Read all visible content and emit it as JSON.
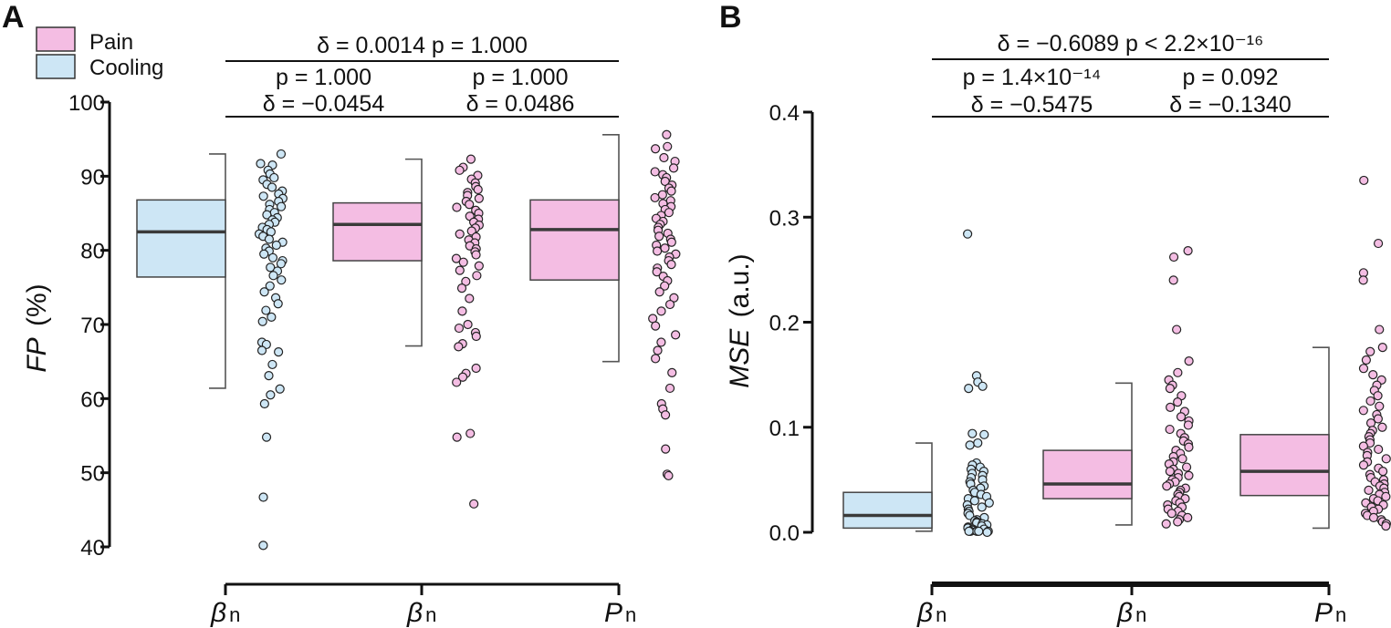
{
  "legend": [
    {
      "label": "Pain",
      "color": "#f4bde3"
    },
    {
      "label": "Cooling",
      "color": "#cde6f5"
    }
  ],
  "chart_data": [
    {
      "panel": "A",
      "type": "box",
      "ylabel_italic": "FP",
      "ylabel_rest": "(%)",
      "ylim": [
        40,
        100
      ],
      "yticks": [
        40,
        50,
        60,
        70,
        80,
        90,
        100
      ],
      "groups": [
        {
          "label": "β",
          "sub": "n",
          "condition": "Cooling",
          "min": 61.4,
          "q1": 76.4,
          "median": 82.5,
          "q3": 86.8,
          "max": 93.0,
          "points": [
            93,
            91.7,
            91.5,
            90.8,
            90.3,
            89.8,
            89.5,
            88.9,
            88.5,
            88,
            87.6,
            87.3,
            87,
            86.6,
            86.2,
            85.9,
            85.5,
            85.1,
            84.8,
            84.4,
            84.1,
            83.8,
            83.5,
            83.1,
            82.8,
            82.5,
            82.2,
            81.9,
            81.5,
            81.1,
            80.7,
            80.3,
            79.9,
            79.5,
            79,
            78.6,
            78.2,
            77.7,
            77.2,
            76.6,
            76,
            75.2,
            74.4,
            73.6,
            72.8,
            71.9,
            71,
            70.4,
            67.6,
            67.3,
            66.5,
            66.3,
            64.6,
            63.1,
            61.3,
            60.5,
            59.3,
            54.8,
            46.7,
            40.2
          ]
        },
        {
          "label": "β",
          "sub": "n",
          "condition": "Pain",
          "min": 67.1,
          "q1": 78.6,
          "median": 83.5,
          "q3": 86.4,
          "max": 92.3,
          "points": [
            92.3,
            91.2,
            90.8,
            90.1,
            89.6,
            89.1,
            88.6,
            88.2,
            87.8,
            87.4,
            87,
            86.6,
            86.2,
            85.8,
            85.4,
            85,
            84.6,
            84.2,
            83.8,
            83.4,
            83,
            82.6,
            82.2,
            81.8,
            81.4,
            81,
            80.6,
            80.2,
            79.8,
            79.4,
            78.9,
            78.4,
            77.9,
            77.3,
            76.6,
            75.8,
            74.9,
            73.5,
            71.8,
            70,
            69.5,
            68.9,
            68.4,
            67.4,
            67,
            64.1,
            63.4,
            62.9,
            62.2,
            55.3,
            54.8,
            45.8
          ]
        },
        {
          "label": "P",
          "sub": "n",
          "condition": "Pain",
          "min": 65.0,
          "q1": 76.0,
          "median": 82.8,
          "q3": 86.8,
          "max": 95.6,
          "points": [
            95.6,
            94,
            93.7,
            92.5,
            92,
            91.1,
            90.6,
            90.2,
            89.8,
            89.3,
            88.8,
            88.4,
            88,
            87.5,
            87.1,
            86.7,
            86.3,
            85.9,
            85.5,
            85.1,
            84.7,
            84.3,
            83.9,
            83.5,
            83.1,
            82.7,
            82.3,
            81.9,
            81.5,
            81.1,
            80.7,
            80.3,
            79.9,
            79.5,
            79.1,
            78.6,
            78.1,
            77.6,
            77.1,
            76.5,
            75.9,
            75.2,
            74.4,
            73.6,
            72.7,
            71.8,
            70.8,
            69.8,
            68.6,
            67.6,
            66.5,
            65.4,
            63.5,
            61.4,
            59.3,
            58.6,
            57.8,
            53.2,
            49.8,
            49.6
          ]
        }
      ],
      "comparisons": [
        {
          "from": 0,
          "to": 2,
          "line1": "δ = 0.0014   p = 1.000",
          "line2": ""
        },
        {
          "from": 0,
          "to": 1,
          "line1": "p = 1.000",
          "line2": "δ = −0.0454"
        },
        {
          "from": 1,
          "to": 2,
          "line1": "p = 1.000",
          "line2": "δ = 0.0486"
        }
      ]
    },
    {
      "panel": "B",
      "type": "box",
      "ylabel_italic": "MSE",
      "ylabel_rest": "(a.u.)",
      "ylim": [
        0.0,
        0.4
      ],
      "yticks": [
        "0.0",
        "0.1",
        "0.2",
        "0.3",
        "0.4"
      ],
      "groups": [
        {
          "label": "β",
          "sub": "n",
          "condition": "Cooling",
          "min": 0.001,
          "q1": 0.004,
          "median": 0.016,
          "q3": 0.038,
          "max": 0.085,
          "points": [
            0.284,
            0.149,
            0.143,
            0.139,
            0.137,
            0.094,
            0.093,
            0.085,
            0.083,
            0.066,
            0.064,
            0.062,
            0.06,
            0.058,
            0.056,
            0.054,
            0.052,
            0.05,
            0.048,
            0.046,
            0.044,
            0.042,
            0.04,
            0.038,
            0.036,
            0.034,
            0.032,
            0.03,
            0.028,
            0.026,
            0.024,
            0.022,
            0.02,
            0.018,
            0.016,
            0.014,
            0.012,
            0.011,
            0.01,
            0.009,
            0.008,
            0.007,
            0.006,
            0.005,
            0.004,
            0.003,
            0.003,
            0.002,
            0.002,
            0.001,
            0.001,
            0.001,
            0.001,
            0.001,
            0.0
          ]
        },
        {
          "label": "β",
          "sub": "n",
          "condition": "Pain",
          "min": 0.007,
          "q1": 0.032,
          "median": 0.046,
          "q3": 0.078,
          "max": 0.142,
          "points": [
            0.268,
            0.262,
            0.24,
            0.193,
            0.163,
            0.152,
            0.145,
            0.14,
            0.137,
            0.13,
            0.124,
            0.119,
            0.115,
            0.11,
            0.106,
            0.102,
            0.098,
            0.094,
            0.09,
            0.087,
            0.084,
            0.081,
            0.078,
            0.075,
            0.072,
            0.07,
            0.067,
            0.065,
            0.062,
            0.06,
            0.058,
            0.056,
            0.054,
            0.052,
            0.05,
            0.048,
            0.046,
            0.044,
            0.042,
            0.04,
            0.038,
            0.036,
            0.034,
            0.032,
            0.03,
            0.028,
            0.026,
            0.024,
            0.022,
            0.02,
            0.018,
            0.016,
            0.014,
            0.012,
            0.01,
            0.008
          ]
        },
        {
          "label": "P",
          "sub": "n",
          "condition": "Pain",
          "min": 0.004,
          "q1": 0.035,
          "median": 0.058,
          "q3": 0.093,
          "max": 0.176,
          "points": [
            0.335,
            0.275,
            0.247,
            0.24,
            0.193,
            0.176,
            0.172,
            0.164,
            0.156,
            0.15,
            0.145,
            0.14,
            0.135,
            0.13,
            0.125,
            0.12,
            0.116,
            0.112,
            0.108,
            0.104,
            0.1,
            0.097,
            0.094,
            0.091,
            0.088,
            0.085,
            0.082,
            0.079,
            0.076,
            0.073,
            0.07,
            0.067,
            0.064,
            0.061,
            0.058,
            0.055,
            0.052,
            0.05,
            0.048,
            0.046,
            0.044,
            0.042,
            0.04,
            0.038,
            0.036,
            0.034,
            0.032,
            0.03,
            0.028,
            0.026,
            0.024,
            0.022,
            0.02,
            0.018,
            0.016,
            0.014,
            0.012,
            0.01,
            0.008,
            0.006
          ]
        }
      ],
      "comparisons": [
        {
          "from": 0,
          "to": 2,
          "line1": "δ = −0.6089   p < 2.2×10⁻¹⁶",
          "line2": ""
        },
        {
          "from": 0,
          "to": 1,
          "line1": "p = 1.4×10⁻¹⁴",
          "line2": "δ = −0.5475"
        },
        {
          "from": 1,
          "to": 2,
          "line1": "p = 0.092",
          "line2": "δ = −0.1340"
        }
      ]
    }
  ]
}
